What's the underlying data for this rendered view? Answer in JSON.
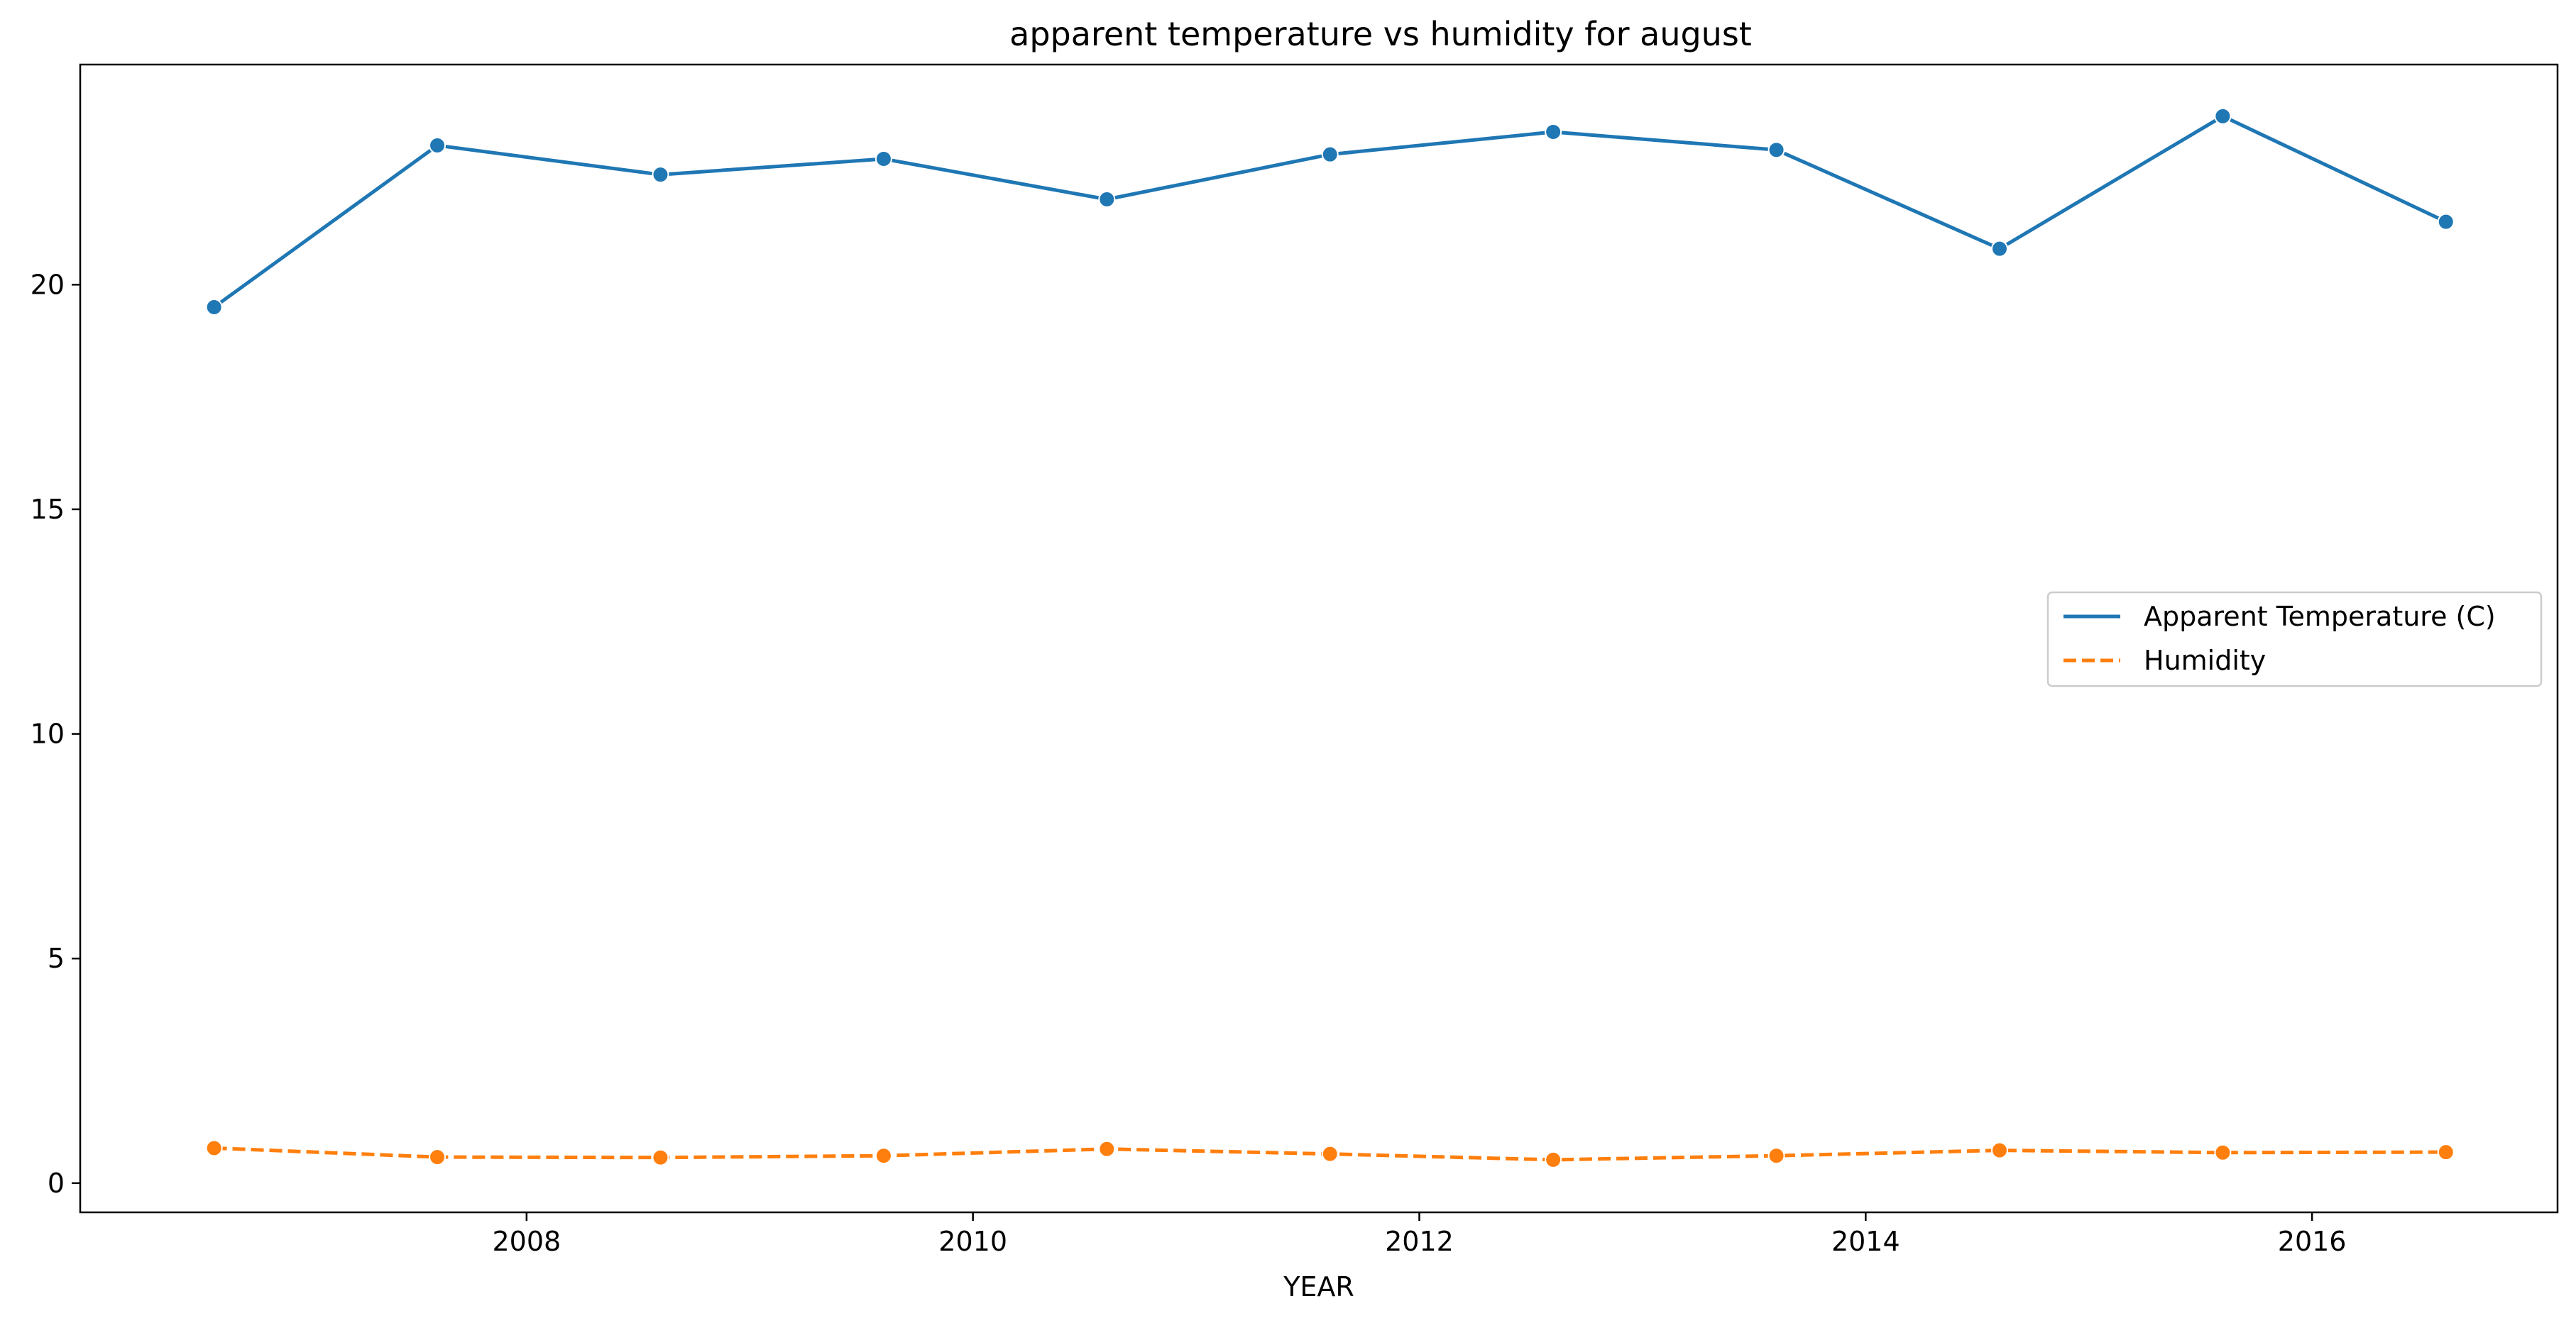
{
  "chart_data": {
    "type": "line",
    "title": "apparent temperature vs humidity for august",
    "xlabel": "YEAR",
    "ylabel": "",
    "xlim": [
      2006.0,
      2017.1
    ],
    "ylim": [
      -0.65,
      24.9
    ],
    "x_ticks": [
      2008,
      2010,
      2012,
      2014,
      2016
    ],
    "y_ticks": [
      0,
      5,
      10,
      15,
      20
    ],
    "x": [
      2006.6,
      2007.6,
      2008.6,
      2009.6,
      2010.6,
      2011.6,
      2012.6,
      2013.6,
      2014.6,
      2015.6,
      2016.6
    ],
    "series": [
      {
        "name": "Apparent Temperature (C)",
        "color": "#1f77b4",
        "dash": "solid",
        "values": [
          19.5,
          23.1,
          22.45,
          22.8,
          21.9,
          22.9,
          23.4,
          23.0,
          20.8,
          23.75,
          21.4
        ]
      },
      {
        "name": "Humidity",
        "color": "#ff7f0e",
        "dash": "dashed",
        "values": [
          0.78,
          0.58,
          0.57,
          0.61,
          0.76,
          0.65,
          0.52,
          0.61,
          0.73,
          0.68,
          0.69
        ]
      }
    ],
    "grid": false,
    "legend_position": "center-right"
  }
}
